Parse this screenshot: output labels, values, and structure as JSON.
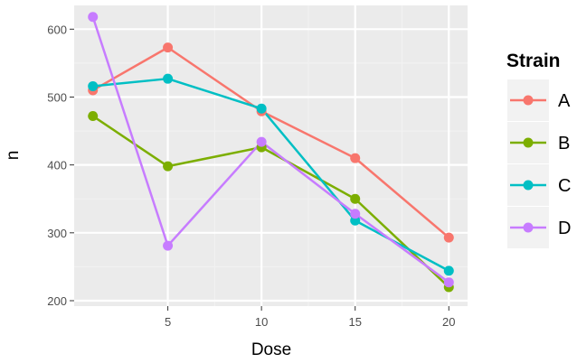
{
  "chart_data": {
    "type": "line",
    "xlabel": "Dose",
    "ylabel": "n",
    "x": [
      1,
      5,
      10,
      15,
      20
    ],
    "xlim": [
      0,
      21
    ],
    "ylim": [
      192,
      635
    ],
    "xticks": [
      5,
      10,
      15,
      20
    ],
    "yticks": [
      200,
      300,
      400,
      500,
      600
    ],
    "grid": true,
    "legend": {
      "title": "Strain",
      "position": "right"
    },
    "series": [
      {
        "name": "A",
        "color": "#F8766D",
        "values": [
          510,
          573,
          479,
          410,
          293
        ]
      },
      {
        "name": "B",
        "color": "#7CAE00",
        "values": [
          472,
          398,
          426,
          350,
          220
        ]
      },
      {
        "name": "C",
        "color": "#00BFC4",
        "values": [
          516,
          527,
          483,
          318,
          244
        ]
      },
      {
        "name": "D",
        "color": "#C77CFF",
        "values": [
          618,
          281,
          434,
          328,
          227
        ]
      }
    ]
  }
}
